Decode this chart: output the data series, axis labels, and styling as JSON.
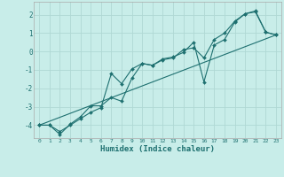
{
  "title": "",
  "xlabel": "Humidex (Indice chaleur)",
  "background_color": "#c8ede9",
  "grid_color": "#b0d8d4",
  "line_color": "#1e7070",
  "xlim": [
    -0.5,
    23.5
  ],
  "ylim": [
    -4.7,
    2.7
  ],
  "yticks": [
    -4,
    -3,
    -2,
    -1,
    0,
    1,
    2
  ],
  "xticks": [
    0,
    1,
    2,
    3,
    4,
    5,
    6,
    7,
    8,
    9,
    10,
    11,
    12,
    13,
    14,
    15,
    16,
    17,
    18,
    19,
    20,
    21,
    22,
    23
  ],
  "line1_x": [
    0,
    1,
    2,
    3,
    4,
    5,
    6,
    7,
    8,
    9,
    10,
    11,
    12,
    13,
    14,
    15,
    16,
    17,
    18,
    19,
    20,
    21,
    22,
    23
  ],
  "line1_y": [
    -4.0,
    -4.0,
    -4.35,
    -4.0,
    -3.65,
    -3.3,
    -3.05,
    -1.2,
    -1.75,
    -0.95,
    -0.65,
    -0.75,
    -0.45,
    -0.35,
    0.1,
    0.2,
    -0.35,
    0.65,
    1.0,
    1.65,
    2.05,
    2.15,
    1.05,
    0.9
  ],
  "line2_x": [
    0,
    1,
    2,
    3,
    4,
    5,
    6,
    7,
    8,
    9,
    10,
    11,
    12,
    13,
    14,
    15,
    16,
    17,
    18,
    19,
    20,
    21,
    22,
    23
  ],
  "line2_y": [
    -4.0,
    -4.0,
    -4.5,
    -3.95,
    -3.55,
    -2.95,
    -2.95,
    -2.5,
    -2.7,
    -1.45,
    -0.65,
    -0.75,
    -0.4,
    -0.3,
    -0.05,
    0.5,
    -1.65,
    0.35,
    0.65,
    1.6,
    2.05,
    2.2,
    1.05,
    0.9
  ],
  "line3_x": [
    0,
    23
  ],
  "line3_y": [
    -4.0,
    0.9
  ]
}
